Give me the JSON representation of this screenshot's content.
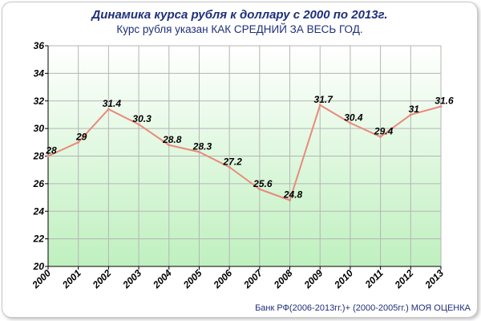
{
  "chart_data": {
    "type": "line",
    "title": "Динамика курса рубля к доллару с 2000 по 2013г.",
    "subtitle": "Курс рубля указан КАК СРЕДНИЙ ЗА ВЕСЬ ГОД.",
    "source": "Банк РФ(2006-2013гг.)+ (2000-2005гг.) МОЯ ОЦЕНКА",
    "x": [
      "2000",
      "2001",
      "2002",
      "2003",
      "2004",
      "2005",
      "2006",
      "2007",
      "2008",
      "2009",
      "2010",
      "2011",
      "2012",
      "2013"
    ],
    "series": [
      {
        "values": [
          28,
          29,
          31.4,
          30.3,
          28.8,
          28.3,
          27.2,
          25.6,
          24.8,
          31.7,
          30.4,
          29.4,
          31,
          31.6
        ],
        "labels": [
          "28",
          "29",
          "31.4",
          "30.3",
          "28.8",
          "28.3",
          "27.2",
          "25.6",
          "24.8",
          "31.7",
          "30.4",
          "29.4",
          "31",
          "31.6"
        ]
      }
    ],
    "ylim": [
      20,
      36
    ],
    "yticks": [
      20,
      22,
      24,
      26,
      28,
      30,
      32,
      34,
      36
    ],
    "grid": true,
    "legend": "none",
    "colors": {
      "line": "#e98a7a",
      "plot_bg_top": "#ffffff",
      "plot_bg_bottom": "#bff0bf",
      "grid": "#b5b5b5",
      "title": "#1f2f7a"
    }
  }
}
